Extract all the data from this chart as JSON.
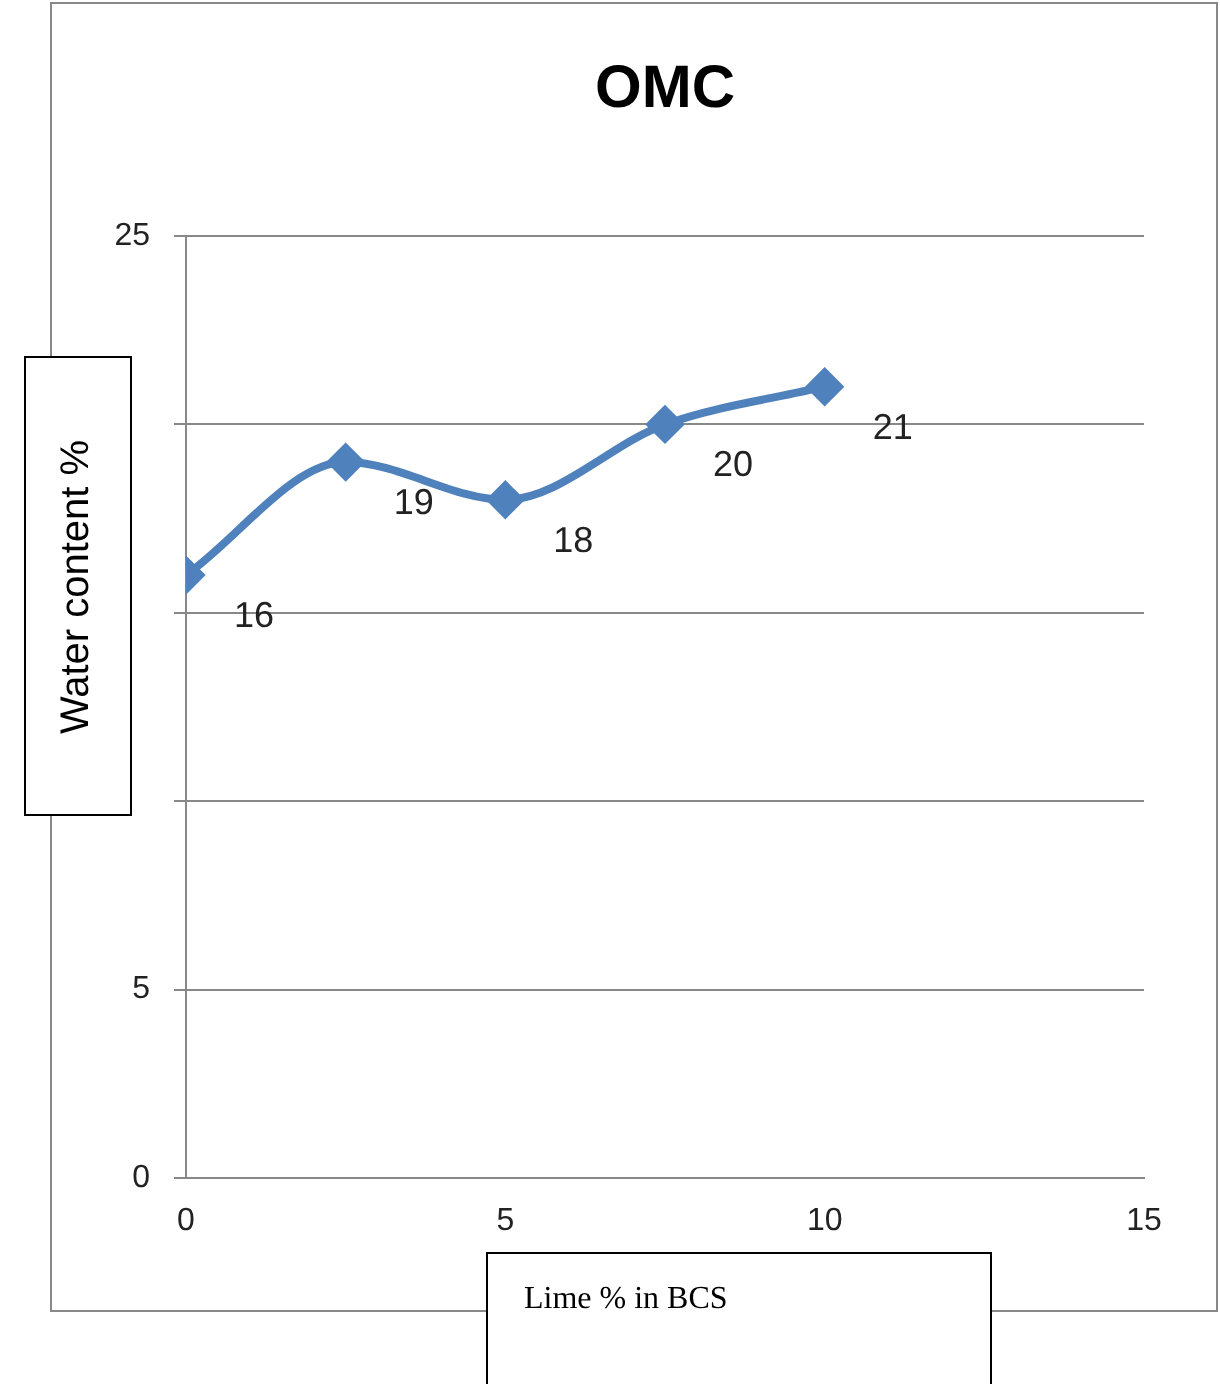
{
  "chart_data": {
    "type": "line",
    "title": "OMC",
    "xlabel": "Lime % in BCS",
    "ylabel": "Water content %",
    "x": [
      0,
      2.5,
      5,
      7.5,
      10
    ],
    "series": [
      {
        "color": "#4f81bd",
        "values": [
          16,
          19,
          18,
          20,
          21
        ]
      }
    ],
    "xlim": [
      0,
      15
    ],
    "xticks": [
      0,
      5,
      10,
      15
    ],
    "ylim": [
      0,
      25
    ],
    "yticks": [
      0,
      5,
      {
        "value": 10,
        "label": null
      },
      {
        "value": 15,
        "label": null
      },
      {
        "value": 20,
        "label": null
      },
      25
    ],
    "grid": "y",
    "legend": false,
    "marker": "diamond",
    "line_style": "solid",
    "data_labels": true
  }
}
